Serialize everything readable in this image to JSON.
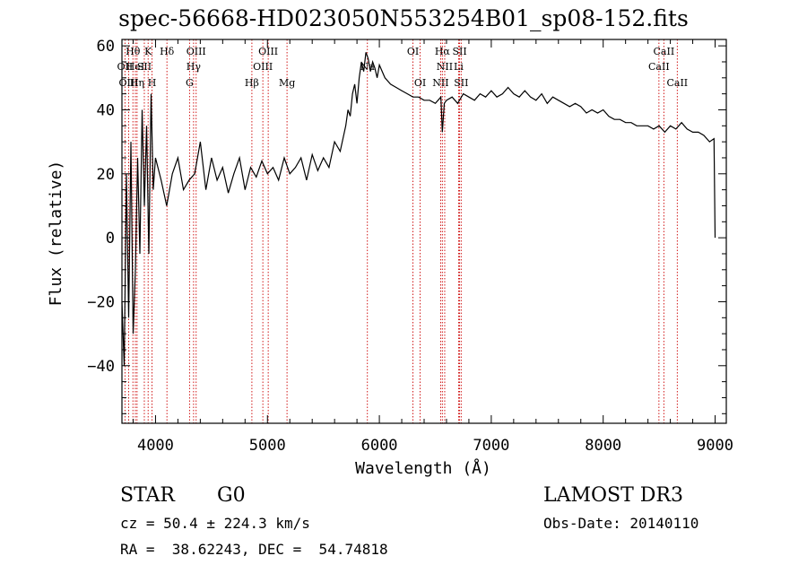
{
  "chart_data": {
    "type": "line",
    "title": "spec-56668-HD023050N553254B01_sp08-152.fits",
    "xlabel": "Wavelength (Å)",
    "ylabel": "Flux (relative)",
    "xlim": [
      3700,
      9100
    ],
    "ylim": [
      -58,
      62
    ],
    "xticks": [
      4000,
      5000,
      6000,
      7000,
      8000,
      9000
    ],
    "yticks": [
      -40,
      -20,
      0,
      20,
      40,
      60
    ],
    "series": [
      {
        "x": [
          3700,
          3720,
          3740,
          3760,
          3780,
          3800,
          3820,
          3840,
          3860,
          3880,
          3900,
          3920,
          3940,
          3960,
          3980,
          4000,
          4050,
          4100,
          4150,
          4200,
          4250,
          4300,
          4350,
          4400,
          4450,
          4500,
          4550,
          4600,
          4650,
          4700,
          4750,
          4800,
          4850,
          4900,
          4950,
          5000,
          5050,
          5100,
          5150,
          5200,
          5250,
          5300,
          5350,
          5400,
          5450,
          5500,
          5550,
          5600,
          5650,
          5700,
          5720,
          5740,
          5760,
          5780,
          5800,
          5820,
          5840,
          5860,
          5880,
          5900,
          5920,
          5940,
          5960,
          5980,
          6000,
          6050,
          6100,
          6150,
          6200,
          6250,
          6300,
          6350,
          6400,
          6450,
          6500,
          6550,
          6563,
          6580,
          6600,
          6650,
          6700,
          6750,
          6800,
          6850,
          6900,
          6950,
          7000,
          7050,
          7100,
          7150,
          7200,
          7250,
          7300,
          7350,
          7400,
          7450,
          7500,
          7550,
          7600,
          7650,
          7700,
          7750,
          7800,
          7850,
          7900,
          7950,
          8000,
          8050,
          8100,
          8150,
          8200,
          8250,
          8300,
          8350,
          8400,
          8450,
          8500,
          8550,
          8600,
          8650,
          8700,
          8750,
          8800,
          8850,
          8900,
          8950,
          8990,
          9000
        ],
        "y": [
          -20,
          -40,
          20,
          -25,
          30,
          -30,
          -10,
          25,
          -5,
          40,
          10,
          35,
          -5,
          45,
          15,
          25,
          18,
          10,
          20,
          25,
          15,
          18,
          20,
          30,
          15,
          25,
          18,
          22,
          14,
          20,
          25,
          15,
          22,
          19,
          24,
          20,
          22,
          18,
          25,
          20,
          22,
          25,
          18,
          26,
          21,
          25,
          22,
          30,
          27,
          35,
          40,
          38,
          45,
          48,
          42,
          50,
          55,
          52,
          58,
          56,
          52,
          55,
          53,
          50,
          54,
          50,
          48,
          47,
          46,
          45,
          44,
          44,
          43,
          43,
          42,
          44,
          33,
          42,
          43,
          44,
          42,
          45,
          44,
          43,
          45,
          44,
          46,
          44,
          45,
          47,
          45,
          44,
          46,
          44,
          43,
          45,
          42,
          44,
          43,
          42,
          41,
          42,
          41,
          39,
          40,
          39,
          40,
          38,
          37,
          37,
          36,
          36,
          35,
          35,
          35,
          34,
          35,
          33,
          35,
          34,
          36,
          34,
          33,
          33,
          32,
          30,
          31,
          0
        ]
      }
    ],
    "lines": [
      {
        "label": "Hθ",
        "x": 3798,
        "row": 0
      },
      {
        "label": "OII",
        "x": 3727,
        "row": 1
      },
      {
        "label": "OIII",
        "x": 3760,
        "row": 2
      },
      {
        "label": "HeI",
        "x": 3820,
        "row": 1
      },
      {
        "label": "Hη",
        "x": 3835,
        "row": 2
      },
      {
        "label": "K",
        "x": 3934,
        "row": 0
      },
      {
        "label": "SII",
        "x": 3900,
        "row": 1
      },
      {
        "label": "H",
        "x": 3969,
        "row": 2
      },
      {
        "label": "Hδ",
        "x": 4102,
        "row": 0
      },
      {
        "label": "OIII",
        "x": 4363,
        "row": 0
      },
      {
        "label": "Hγ",
        "x": 4340,
        "row": 1
      },
      {
        "label": "G",
        "x": 4304,
        "row": 2
      },
      {
        "label": "OIII",
        "x": 5007,
        "row": 0
      },
      {
        "label": "OIII",
        "x": 4959,
        "row": 1
      },
      {
        "label": "Hβ",
        "x": 4861,
        "row": 2
      },
      {
        "label": "Mg",
        "x": 5175,
        "row": 2
      },
      {
        "label": "Na",
        "x": 5893,
        "row": 1
      },
      {
        "label": "OI",
        "x": 6300,
        "row": 0
      },
      {
        "label": "OI",
        "x": 6364,
        "row": 2
      },
      {
        "label": "Hα",
        "x": 6563,
        "row": 0
      },
      {
        "label": "NII",
        "x": 6584,
        "row": 1
      },
      {
        "label": "NII",
        "x": 6548,
        "row": 2
      },
      {
        "label": "SII",
        "x": 6717,
        "row": 0
      },
      {
        "label": "Li",
        "x": 6708,
        "row": 1
      },
      {
        "label": "SII",
        "x": 6731,
        "row": 2
      },
      {
        "label": "CaII",
        "x": 8542,
        "row": 0
      },
      {
        "label": "CaII",
        "x": 8498,
        "row": 1
      },
      {
        "label": "CaII",
        "x": 8662,
        "row": 2
      }
    ]
  },
  "info": {
    "star_type": "STAR",
    "subclass": "G0",
    "survey": "LAMOST DR3",
    "cz": "cz = 50.4 ± 224.3 km/s",
    "obs_date": "Obs-Date: 20140110",
    "coords": "RA =  38.62243, DEC =  54.74818"
  }
}
